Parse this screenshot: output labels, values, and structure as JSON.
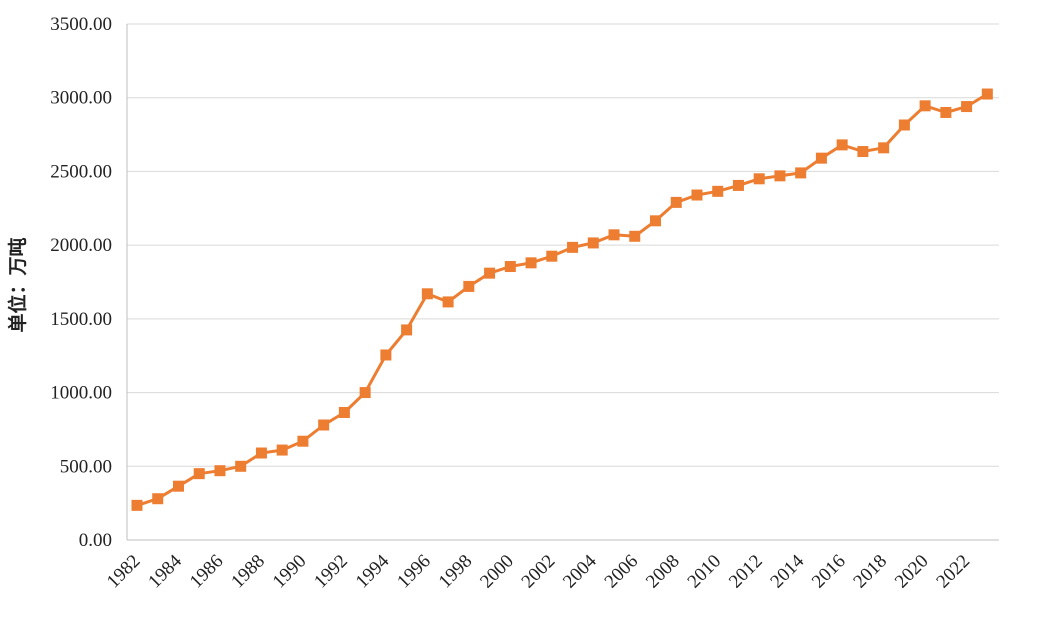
{
  "chart_data": {
    "type": "line",
    "title": "",
    "xlabel": "",
    "ylabel": "单位：万吨",
    "ylim": [
      0,
      3500
    ],
    "yticks": [
      "0.00",
      "500.00",
      "1000.00",
      "1500.00",
      "2000.00",
      "2500.00",
      "3000.00",
      "3500.00"
    ],
    "xticks": [
      "1982",
      "1984",
      "1986",
      "1988",
      "1990",
      "1992",
      "1994",
      "1996",
      "1998",
      "2000",
      "2002",
      "2004",
      "2006",
      "2008",
      "2010",
      "2012",
      "2014",
      "2016",
      "2018",
      "2020",
      "2022"
    ],
    "grid": true,
    "legend": "none",
    "color": "#ED7D31",
    "x": [
      1982,
      1983,
      1984,
      1985,
      1986,
      1987,
      1988,
      1989,
      1990,
      1991,
      1992,
      1993,
      1994,
      1995,
      1996,
      1997,
      1998,
      1999,
      2000,
      2001,
      2002,
      2003,
      2004,
      2005,
      2006,
      2007,
      2008,
      2009,
      2010,
      2011,
      2012,
      2013,
      2014,
      2015,
      2016,
      2017,
      2018,
      2019,
      2020,
      2021,
      2022,
      2023
    ],
    "series": [
      {
        "values": [
          235,
          280,
          365,
          450,
          470,
          500,
          590,
          610,
          670,
          780,
          865,
          1000,
          1255,
          1425,
          1670,
          1615,
          1720,
          1810,
          1855,
          1880,
          1925,
          1985,
          2015,
          2070,
          2060,
          2165,
          2290,
          2340,
          2365,
          2405,
          2450,
          2470,
          2490,
          2590,
          2680,
          2635,
          2660,
          2815,
          2945,
          2900,
          2940,
          3025
        ]
      }
    ]
  }
}
